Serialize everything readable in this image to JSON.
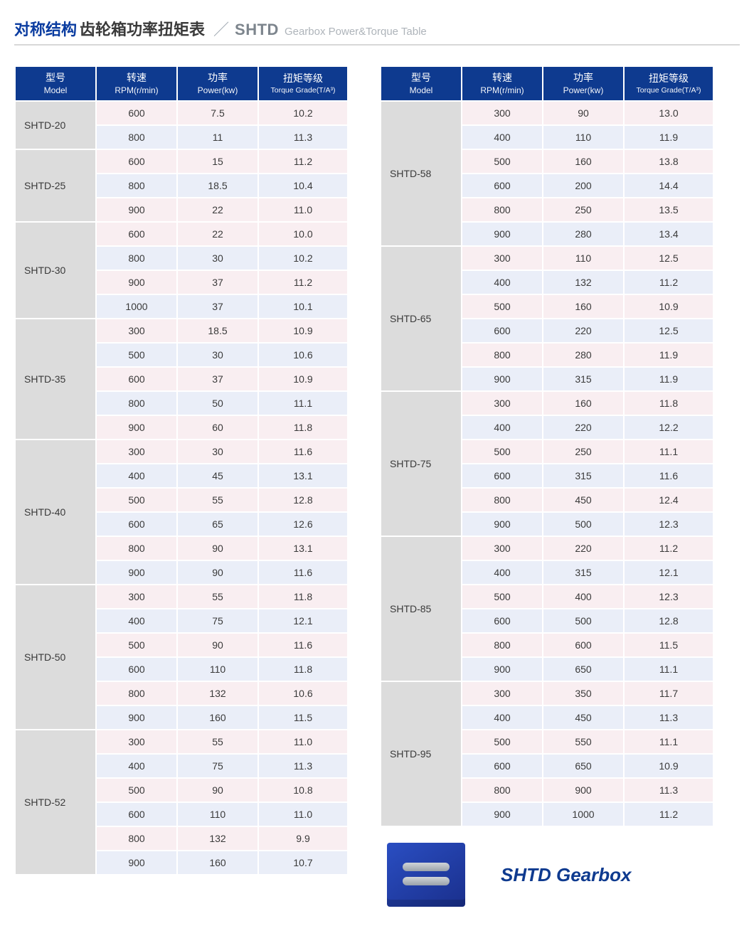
{
  "title": {
    "accent_cn": "对称结构",
    "main_cn": "齿轮箱功率扭矩表",
    "slash": "／",
    "code": "SHTD",
    "sub_en": "Gearbox Power&Torque Table"
  },
  "headers": {
    "model_cn": "型号",
    "model_en": "Model",
    "rpm_cn": "转速",
    "rpm_en": "RPM(r/min)",
    "power_cn": "功率",
    "power_en": "Power(kw)",
    "torque_cn": "扭矩等级",
    "torque_en": "Torque Grade(T/A³)"
  },
  "colors": {
    "header_bg": "#0e3a8f",
    "model_bg": "#dcdcdc",
    "row_colors": [
      "#f9eef1",
      "#eaeef8"
    ]
  },
  "left_groups": [
    {
      "model": "SHTD-20",
      "rows": [
        {
          "rpm": "600",
          "power": "7.5",
          "torque": "10.2"
        },
        {
          "rpm": "800",
          "power": "11",
          "torque": "11.3"
        }
      ]
    },
    {
      "model": "SHTD-25",
      "rows": [
        {
          "rpm": "600",
          "power": "15",
          "torque": "11.2"
        },
        {
          "rpm": "800",
          "power": "18.5",
          "torque": "10.4"
        },
        {
          "rpm": "900",
          "power": "22",
          "torque": "11.0"
        }
      ]
    },
    {
      "model": "SHTD-30",
      "rows": [
        {
          "rpm": "600",
          "power": "22",
          "torque": "10.0"
        },
        {
          "rpm": "800",
          "power": "30",
          "torque": "10.2"
        },
        {
          "rpm": "900",
          "power": "37",
          "torque": "11.2"
        },
        {
          "rpm": "1000",
          "power": "37",
          "torque": "10.1"
        }
      ]
    },
    {
      "model": "SHTD-35",
      "rows": [
        {
          "rpm": "300",
          "power": "18.5",
          "torque": "10.9"
        },
        {
          "rpm": "500",
          "power": "30",
          "torque": "10.6"
        },
        {
          "rpm": "600",
          "power": "37",
          "torque": "10.9"
        },
        {
          "rpm": "800",
          "power": "50",
          "torque": "11.1"
        },
        {
          "rpm": "900",
          "power": "60",
          "torque": "11.8"
        }
      ]
    },
    {
      "model": "SHTD-40",
      "rows": [
        {
          "rpm": "300",
          "power": "30",
          "torque": "11.6"
        },
        {
          "rpm": "400",
          "power": "45",
          "torque": "13.1"
        },
        {
          "rpm": "500",
          "power": "55",
          "torque": "12.8"
        },
        {
          "rpm": "600",
          "power": "65",
          "torque": "12.6"
        },
        {
          "rpm": "800",
          "power": "90",
          "torque": "13.1"
        },
        {
          "rpm": "900",
          "power": "90",
          "torque": "11.6"
        }
      ]
    },
    {
      "model": "SHTD-50",
      "rows": [
        {
          "rpm": "300",
          "power": "55",
          "torque": "11.8"
        },
        {
          "rpm": "400",
          "power": "75",
          "torque": "12.1"
        },
        {
          "rpm": "500",
          "power": "90",
          "torque": "11.6"
        },
        {
          "rpm": "600",
          "power": "110",
          "torque": "11.8"
        },
        {
          "rpm": "800",
          "power": "132",
          "torque": "10.6"
        },
        {
          "rpm": "900",
          "power": "160",
          "torque": "11.5"
        }
      ]
    },
    {
      "model": "SHTD-52",
      "rows": [
        {
          "rpm": "300",
          "power": "55",
          "torque": "11.0"
        },
        {
          "rpm": "400",
          "power": "75",
          "torque": "11.3"
        },
        {
          "rpm": "500",
          "power": "90",
          "torque": "10.8"
        },
        {
          "rpm": "600",
          "power": "110",
          "torque": "11.0"
        },
        {
          "rpm": "800",
          "power": "132",
          "torque": "9.9"
        },
        {
          "rpm": "900",
          "power": "160",
          "torque": "10.7"
        }
      ]
    }
  ],
  "right_groups": [
    {
      "model": "SHTD-58",
      "rows": [
        {
          "rpm": "300",
          "power": "90",
          "torque": "13.0"
        },
        {
          "rpm": "400",
          "power": "110",
          "torque": "11.9"
        },
        {
          "rpm": "500",
          "power": "160",
          "torque": "13.8"
        },
        {
          "rpm": "600",
          "power": "200",
          "torque": "14.4"
        },
        {
          "rpm": "800",
          "power": "250",
          "torque": "13.5"
        },
        {
          "rpm": "900",
          "power": "280",
          "torque": "13.4"
        }
      ]
    },
    {
      "model": "SHTD-65",
      "rows": [
        {
          "rpm": "300",
          "power": "110",
          "torque": "12.5"
        },
        {
          "rpm": "400",
          "power": "132",
          "torque": "11.2"
        },
        {
          "rpm": "500",
          "power": "160",
          "torque": "10.9"
        },
        {
          "rpm": "600",
          "power": "220",
          "torque": "12.5"
        },
        {
          "rpm": "800",
          "power": "280",
          "torque": "11.9"
        },
        {
          "rpm": "900",
          "power": "315",
          "torque": "11.9"
        }
      ]
    },
    {
      "model": "SHTD-75",
      "rows": [
        {
          "rpm": "300",
          "power": "160",
          "torque": "11.8"
        },
        {
          "rpm": "400",
          "power": "220",
          "torque": "12.2"
        },
        {
          "rpm": "500",
          "power": "250",
          "torque": "11.1"
        },
        {
          "rpm": "600",
          "power": "315",
          "torque": "11.6"
        },
        {
          "rpm": "800",
          "power": "450",
          "torque": "12.4"
        },
        {
          "rpm": "900",
          "power": "500",
          "torque": "12.3"
        }
      ]
    },
    {
      "model": "SHTD-85",
      "rows": [
        {
          "rpm": "300",
          "power": "220",
          "torque": "11.2"
        },
        {
          "rpm": "400",
          "power": "315",
          "torque": "12.1"
        },
        {
          "rpm": "500",
          "power": "400",
          "torque": "12.3"
        },
        {
          "rpm": "600",
          "power": "500",
          "torque": "12.8"
        },
        {
          "rpm": "800",
          "power": "600",
          "torque": "11.5"
        },
        {
          "rpm": "900",
          "power": "650",
          "torque": "11.1"
        }
      ]
    },
    {
      "model": "SHTD-95",
      "rows": [
        {
          "rpm": "300",
          "power": "350",
          "torque": "11.7"
        },
        {
          "rpm": "400",
          "power": "450",
          "torque": "11.3"
        },
        {
          "rpm": "500",
          "power": "550",
          "torque": "11.1"
        },
        {
          "rpm": "600",
          "power": "650",
          "torque": "10.9"
        },
        {
          "rpm": "800",
          "power": "900",
          "torque": "11.3"
        },
        {
          "rpm": "900",
          "power": "1000",
          "torque": "11.2"
        }
      ]
    }
  ],
  "footer_label": "SHTD Gearbox"
}
